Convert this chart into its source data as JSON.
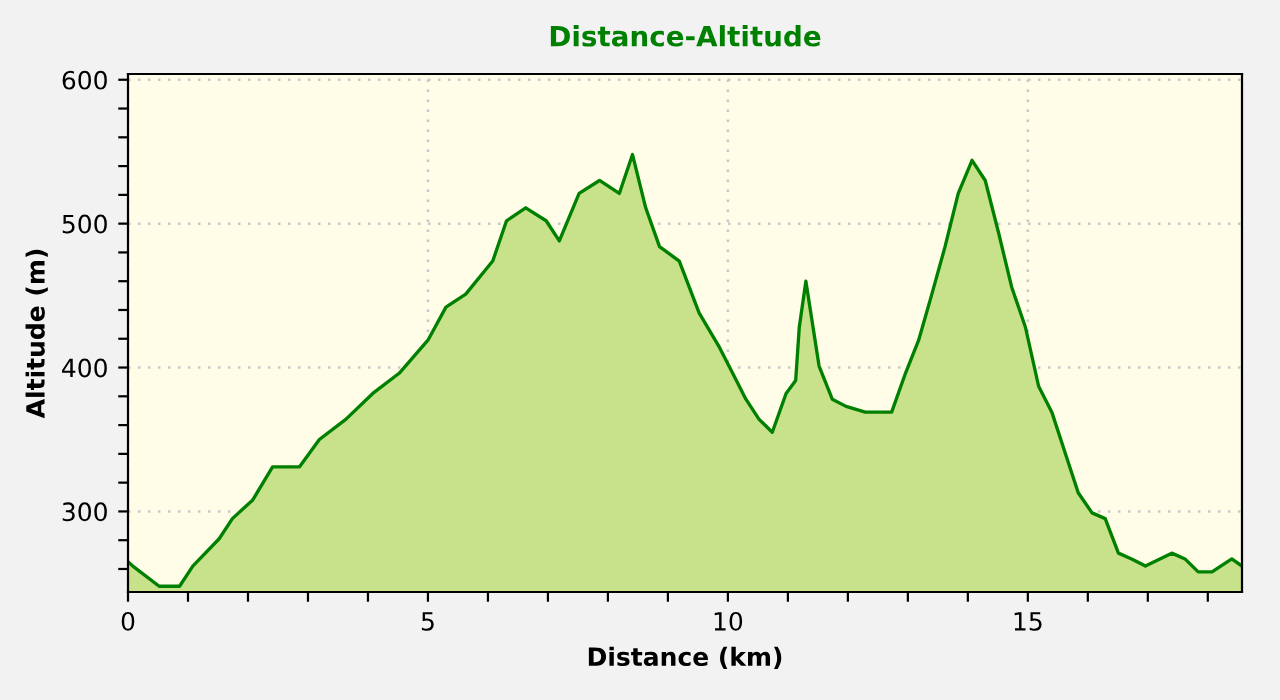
{
  "chart_data": {
    "type": "area",
    "title": "Distance-Altitude",
    "xlabel": "Distance (km)",
    "ylabel": "Altitude (m)",
    "xlim": [
      0,
      18.57
    ],
    "ylim": [
      244,
      604
    ],
    "xticks": [
      0,
      {
        "value": 1,
        "label": null
      },
      {
        "value": 2,
        "label": null
      },
      {
        "value": 3,
        "label": null
      },
      {
        "value": 4,
        "label": null
      },
      5,
      {
        "value": 6,
        "label": null
      },
      {
        "value": 7,
        "label": null
      },
      {
        "value": 8,
        "label": null
      },
      {
        "value": 9,
        "label": null
      },
      10,
      {
        "value": 11,
        "label": null
      },
      {
        "value": 12,
        "label": null
      },
      {
        "value": 13,
        "label": null
      },
      {
        "value": 14,
        "label": null
      },
      15,
      {
        "value": 16,
        "label": null
      },
      {
        "value": 17,
        "label": null
      },
      {
        "value": 18,
        "label": null
      }
    ],
    "yticks": [
      {
        "value": 260,
        "label": null
      },
      {
        "value": 280,
        "label": null
      },
      300,
      {
        "value": 320,
        "label": null
      },
      {
        "value": 340,
        "label": null
      },
      {
        "value": 360,
        "label": null
      },
      {
        "value": 380,
        "label": null
      },
      400,
      {
        "value": 420,
        "label": null
      },
      {
        "value": 440,
        "label": null
      },
      {
        "value": 460,
        "label": null
      },
      {
        "value": 480,
        "label": null
      },
      500,
      {
        "value": 520,
        "label": null
      },
      {
        "value": 540,
        "label": null
      },
      {
        "value": 560,
        "label": null
      },
      {
        "value": 580,
        "label": null
      },
      600
    ],
    "grid": true,
    "series": [
      {
        "color": "#008000",
        "x": [
          0,
          0.08,
          0.52,
          0.86,
          1.08,
          1.52,
          1.74,
          2.08,
          2.41,
          2.86,
          3.19,
          3.63,
          4.08,
          4.52,
          5.0,
          5.3,
          5.63,
          6.08,
          6.31,
          6.63,
          6.97,
          7.19,
          7.52,
          7.86,
          8.19,
          8.41,
          8.63,
          8.86,
          9.19,
          9.52,
          9.86,
          10.08,
          10.3,
          10.52,
          10.74,
          10.97,
          11.13,
          11.19,
          11.3,
          11.52,
          11.74,
          11.97,
          12.29,
          12.73,
          12.96,
          13.18,
          13.4,
          13.62,
          13.84,
          14.07,
          14.29,
          14.51,
          14.73,
          14.96,
          15.18,
          15.4,
          15.62,
          15.84,
          16.07,
          16.29,
          16.51,
          16.73,
          16.96,
          17.4,
          17.62,
          17.84,
          18.07,
          18.4,
          18.57
        ],
        "values": [
          265,
          262,
          248,
          248,
          262,
          281,
          295,
          308,
          331,
          331,
          350,
          364,
          382,
          396,
          419,
          442,
          451,
          474,
          502,
          511,
          502,
          488,
          521,
          530,
          521,
          548,
          511,
          484,
          474,
          438,
          414,
          396,
          378,
          364,
          355,
          382,
          391,
          428,
          460,
          401,
          378,
          373,
          369,
          369,
          396,
          419,
          451,
          484,
          521,
          544,
          530,
          494,
          456,
          428,
          387,
          369,
          341,
          313,
          299,
          295,
          271,
          267,
          262,
          271,
          267,
          258,
          258,
          267,
          262
        ]
      }
    ]
  }
}
